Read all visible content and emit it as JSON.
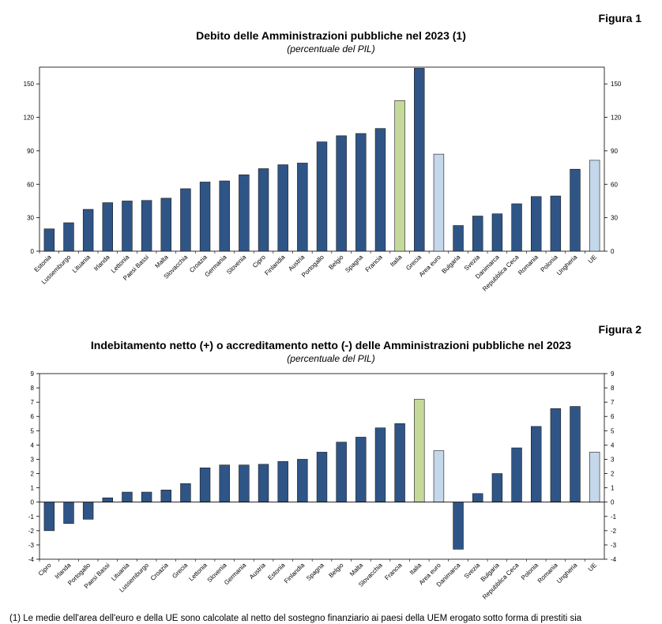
{
  "figures": [
    {
      "label": "Figura 1",
      "title": "Debito delle Amministrazioni pubbliche nel 2023 (1)",
      "subtitle": "(percentuale del PIL)"
    },
    {
      "label": "Figura 2",
      "title": "Indebitamento netto (+) o accreditamento netto (-) delle Amministrazioni pubbliche nel 2023",
      "subtitle": "(percentuale del PIL)"
    }
  ],
  "colors": {
    "bar": "#2f5587",
    "italia": "#c5d99a",
    "aggregate": "#c5d7ea",
    "bar_stroke": "#1a1a1a"
  },
  "chart_data": [
    {
      "type": "bar",
      "title": "Debito delle Amministrazioni pubbliche nel 2023 (1)",
      "subtitle": "(percentuale del PIL)",
      "xlabel": "",
      "ylabel": "",
      "ylim": [
        0,
        165
      ],
      "yticks": [
        0,
        30,
        60,
        90,
        120,
        150
      ],
      "right_axis": true,
      "grid": false,
      "categories": [
        "Estonia",
        "Lussemburgo",
        "Lituania",
        "Irlanda",
        "Lettonia",
        "Paesi Bassi",
        "Malta",
        "Slovacchia",
        "Croazia",
        "Germania",
        "Slovenia",
        "Cipro",
        "Finlandia",
        "Austria",
        "Portogallo",
        "Belgio",
        "Spagna",
        "Francia",
        "Italia",
        "Grecia",
        "Area euro",
        "Bulgaria",
        "Svezia",
        "Danimarca",
        "Repubblica Ceca",
        "Romania",
        "Polonia",
        "Ungheria",
        "UE"
      ],
      "values": [
        20,
        25.5,
        37.5,
        43.5,
        45,
        45.5,
        47.5,
        56,
        62,
        63,
        68.5,
        74,
        77.5,
        79,
        98,
        103.5,
        105.5,
        110,
        135,
        164,
        87,
        23,
        31.5,
        33.5,
        42.5,
        49,
        49.5,
        73.5,
        81.5
      ],
      "highlight": {
        "Italia": "italia",
        "Area euro": "aggregate",
        "UE": "aggregate"
      }
    },
    {
      "type": "bar",
      "title": "Indebitamento netto (+) o accreditamento netto (-) delle Amministrazioni pubbliche nel 2023",
      "subtitle": "(percentuale del PIL)",
      "xlabel": "",
      "ylabel": "",
      "ylim": [
        -4,
        9
      ],
      "yticks": [
        -4,
        -3,
        -2,
        -1,
        0,
        1,
        2,
        3,
        4,
        5,
        6,
        7,
        8,
        9
      ],
      "right_axis": true,
      "grid": false,
      "categories": [
        "Cipro",
        "Irlanda",
        "Portogallo",
        "Paesi Bassi",
        "Lituania",
        "Lussemburgo",
        "Croazia",
        "Grecia",
        "Lettonia",
        "Slovenia",
        "Germania",
        "Austria",
        "Estonia",
        "Finlandia",
        "Spagna",
        "Belgio",
        "Malta",
        "Slovacchia",
        "Francia",
        "Italia",
        "Area euro",
        "Danimarca",
        "Svezia",
        "Bulgaria",
        "Repubblica Ceca",
        "Polonia",
        "Romania",
        "Ungheria",
        "UE"
      ],
      "values": [
        -2,
        -1.5,
        -1.2,
        0.3,
        0.7,
        0.7,
        0.85,
        1.3,
        2.4,
        2.6,
        2.6,
        2.65,
        2.85,
        3.0,
        3.5,
        4.2,
        4.55,
        5.2,
        5.5,
        7.2,
        3.6,
        -3.3,
        0.6,
        2.0,
        3.8,
        5.3,
        6.55,
        6.7,
        3.5
      ],
      "highlight": {
        "Italia": "italia",
        "Area euro": "aggregate",
        "UE": "aggregate"
      }
    }
  ],
  "footnote": "(1) Le medie dell'area dell'euro e della UE sono calcolate al netto del sostegno finanziario ai paesi della UEM erogato sotto forma di prestiti sia"
}
